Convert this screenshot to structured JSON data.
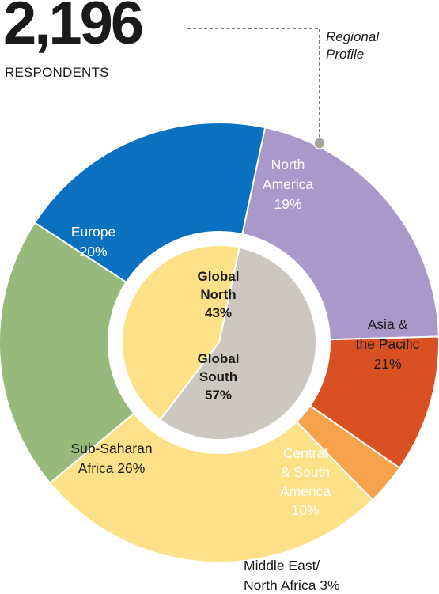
{
  "header": {
    "count": "2,196",
    "count_label": "RESPONDENTS",
    "profile_label_line1": "Regional",
    "profile_label_line2": "Profile"
  },
  "chart_data": {
    "type": "pie",
    "total_respondents": 2196,
    "outer_ring": [
      {
        "name_lines": [
          "North",
          "America"
        ],
        "value_label": "19%",
        "value": 19,
        "color": "#0a71c0"
      },
      {
        "name_lines": [
          "Asia &",
          "the Pacific"
        ],
        "value_label": "21%",
        "value": 21,
        "color": "#a999cb"
      },
      {
        "name_lines": [
          "Central",
          "& South",
          "America"
        ],
        "value_label": "10%",
        "value": 10,
        "color": "#d95123"
      },
      {
        "name_lines": [
          "Middle East/",
          "North Africa 3%"
        ],
        "value_label": "",
        "value": 3,
        "color": "#f6a34c"
      },
      {
        "name_lines": [
          "Sub-Saharan",
          "Africa 26%"
        ],
        "value_label": "",
        "value": 26,
        "color": "#fde188"
      },
      {
        "name_lines": [
          "Europe"
        ],
        "value_label": "20%",
        "value": 20,
        "color": "#97b97c"
      }
    ],
    "inner_pie": [
      {
        "name_lines": [
          "Global",
          "North"
        ],
        "value_label": "43%",
        "value": 43,
        "color": "#fde188"
      },
      {
        "name_lines": [
          "Global",
          "South"
        ],
        "value_label": "57%",
        "value": 57,
        "color": "#ccc8c1"
      }
    ]
  }
}
